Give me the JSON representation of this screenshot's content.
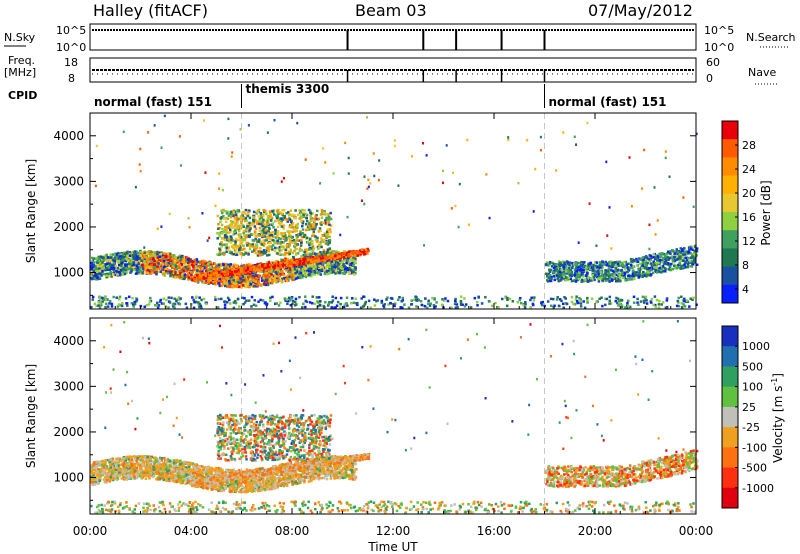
{
  "header": {
    "station": "Halley (fitACF)",
    "beam": "Beam 03",
    "date": "07/May/2012"
  },
  "panels": {
    "nsky_label": "N.Sky",
    "nsky_ticks": [
      "10^5",
      "10^0"
    ],
    "nsearch_label": "N.Search",
    "nsearch_ticks": [
      "10^5",
      "10^0"
    ],
    "freq_label": "Freq.",
    "freq_unit": "[MHz]",
    "freq_ticks": [
      "18",
      "8"
    ],
    "nave_label": "Nave",
    "nave_ticks": [
      "60",
      "0"
    ],
    "cpid_label": "CPID"
  },
  "cpid_segments": [
    {
      "label": "normal (fast) 151",
      "start_hour": 0,
      "end_hour": 6
    },
    {
      "label": "themis 3300",
      "start_hour": 6,
      "end_hour": 18
    },
    {
      "label": "normal (fast) 151",
      "start_hour": 18,
      "end_hour": 24
    }
  ],
  "nsky_markers_hours": [
    10.2,
    13.2,
    14.5,
    16.3,
    18.0
  ],
  "chart_data": [
    {
      "type": "heatmap",
      "name": "Power",
      "xlabel": "",
      "ylabel": "Slant Range [km]",
      "xlim": [
        0,
        24
      ],
      "ylim": [
        200,
        4500
      ],
      "y_ticks": [
        1000,
        2000,
        3000,
        4000
      ],
      "colorbar_label": "Power [dB]",
      "colorbar_ticks": [
        "28",
        "24",
        "20",
        "16",
        "12",
        "8",
        "4"
      ],
      "colorbar_colors": [
        "#e8000a",
        "#ff5a00",
        "#ff8c00",
        "#ffb000",
        "#e8c830",
        "#90d040",
        "#40a060",
        "#207850",
        "#1a50a0",
        "#0820ff"
      ]
    },
    {
      "type": "heatmap",
      "name": "Velocity",
      "xlabel": "Time UT",
      "ylabel": "Slant Range [km]",
      "xlim": [
        0,
        24
      ],
      "ylim": [
        200,
        4500
      ],
      "x_ticks": [
        "00:00",
        "04:00",
        "08:00",
        "12:00",
        "16:00",
        "20:00",
        "00:00"
      ],
      "y_ticks": [
        1000,
        2000,
        3000,
        4000
      ],
      "colorbar_label": "Velocity [m s",
      "colorbar_label_sup": "-1",
      "colorbar_ticks": [
        "1000",
        "500",
        "100",
        "25",
        "-25",
        "-100",
        "-500",
        "-1000"
      ],
      "colorbar_colors": [
        "#1830c0",
        "#2070b0",
        "#30a060",
        "#60c040",
        "#c0c0b8",
        "#f0a020",
        "#ff7010",
        "#ff3010",
        "#e00010"
      ]
    }
  ],
  "colors": {
    "grid": "#c8c8c8",
    "axis": "#000000"
  }
}
